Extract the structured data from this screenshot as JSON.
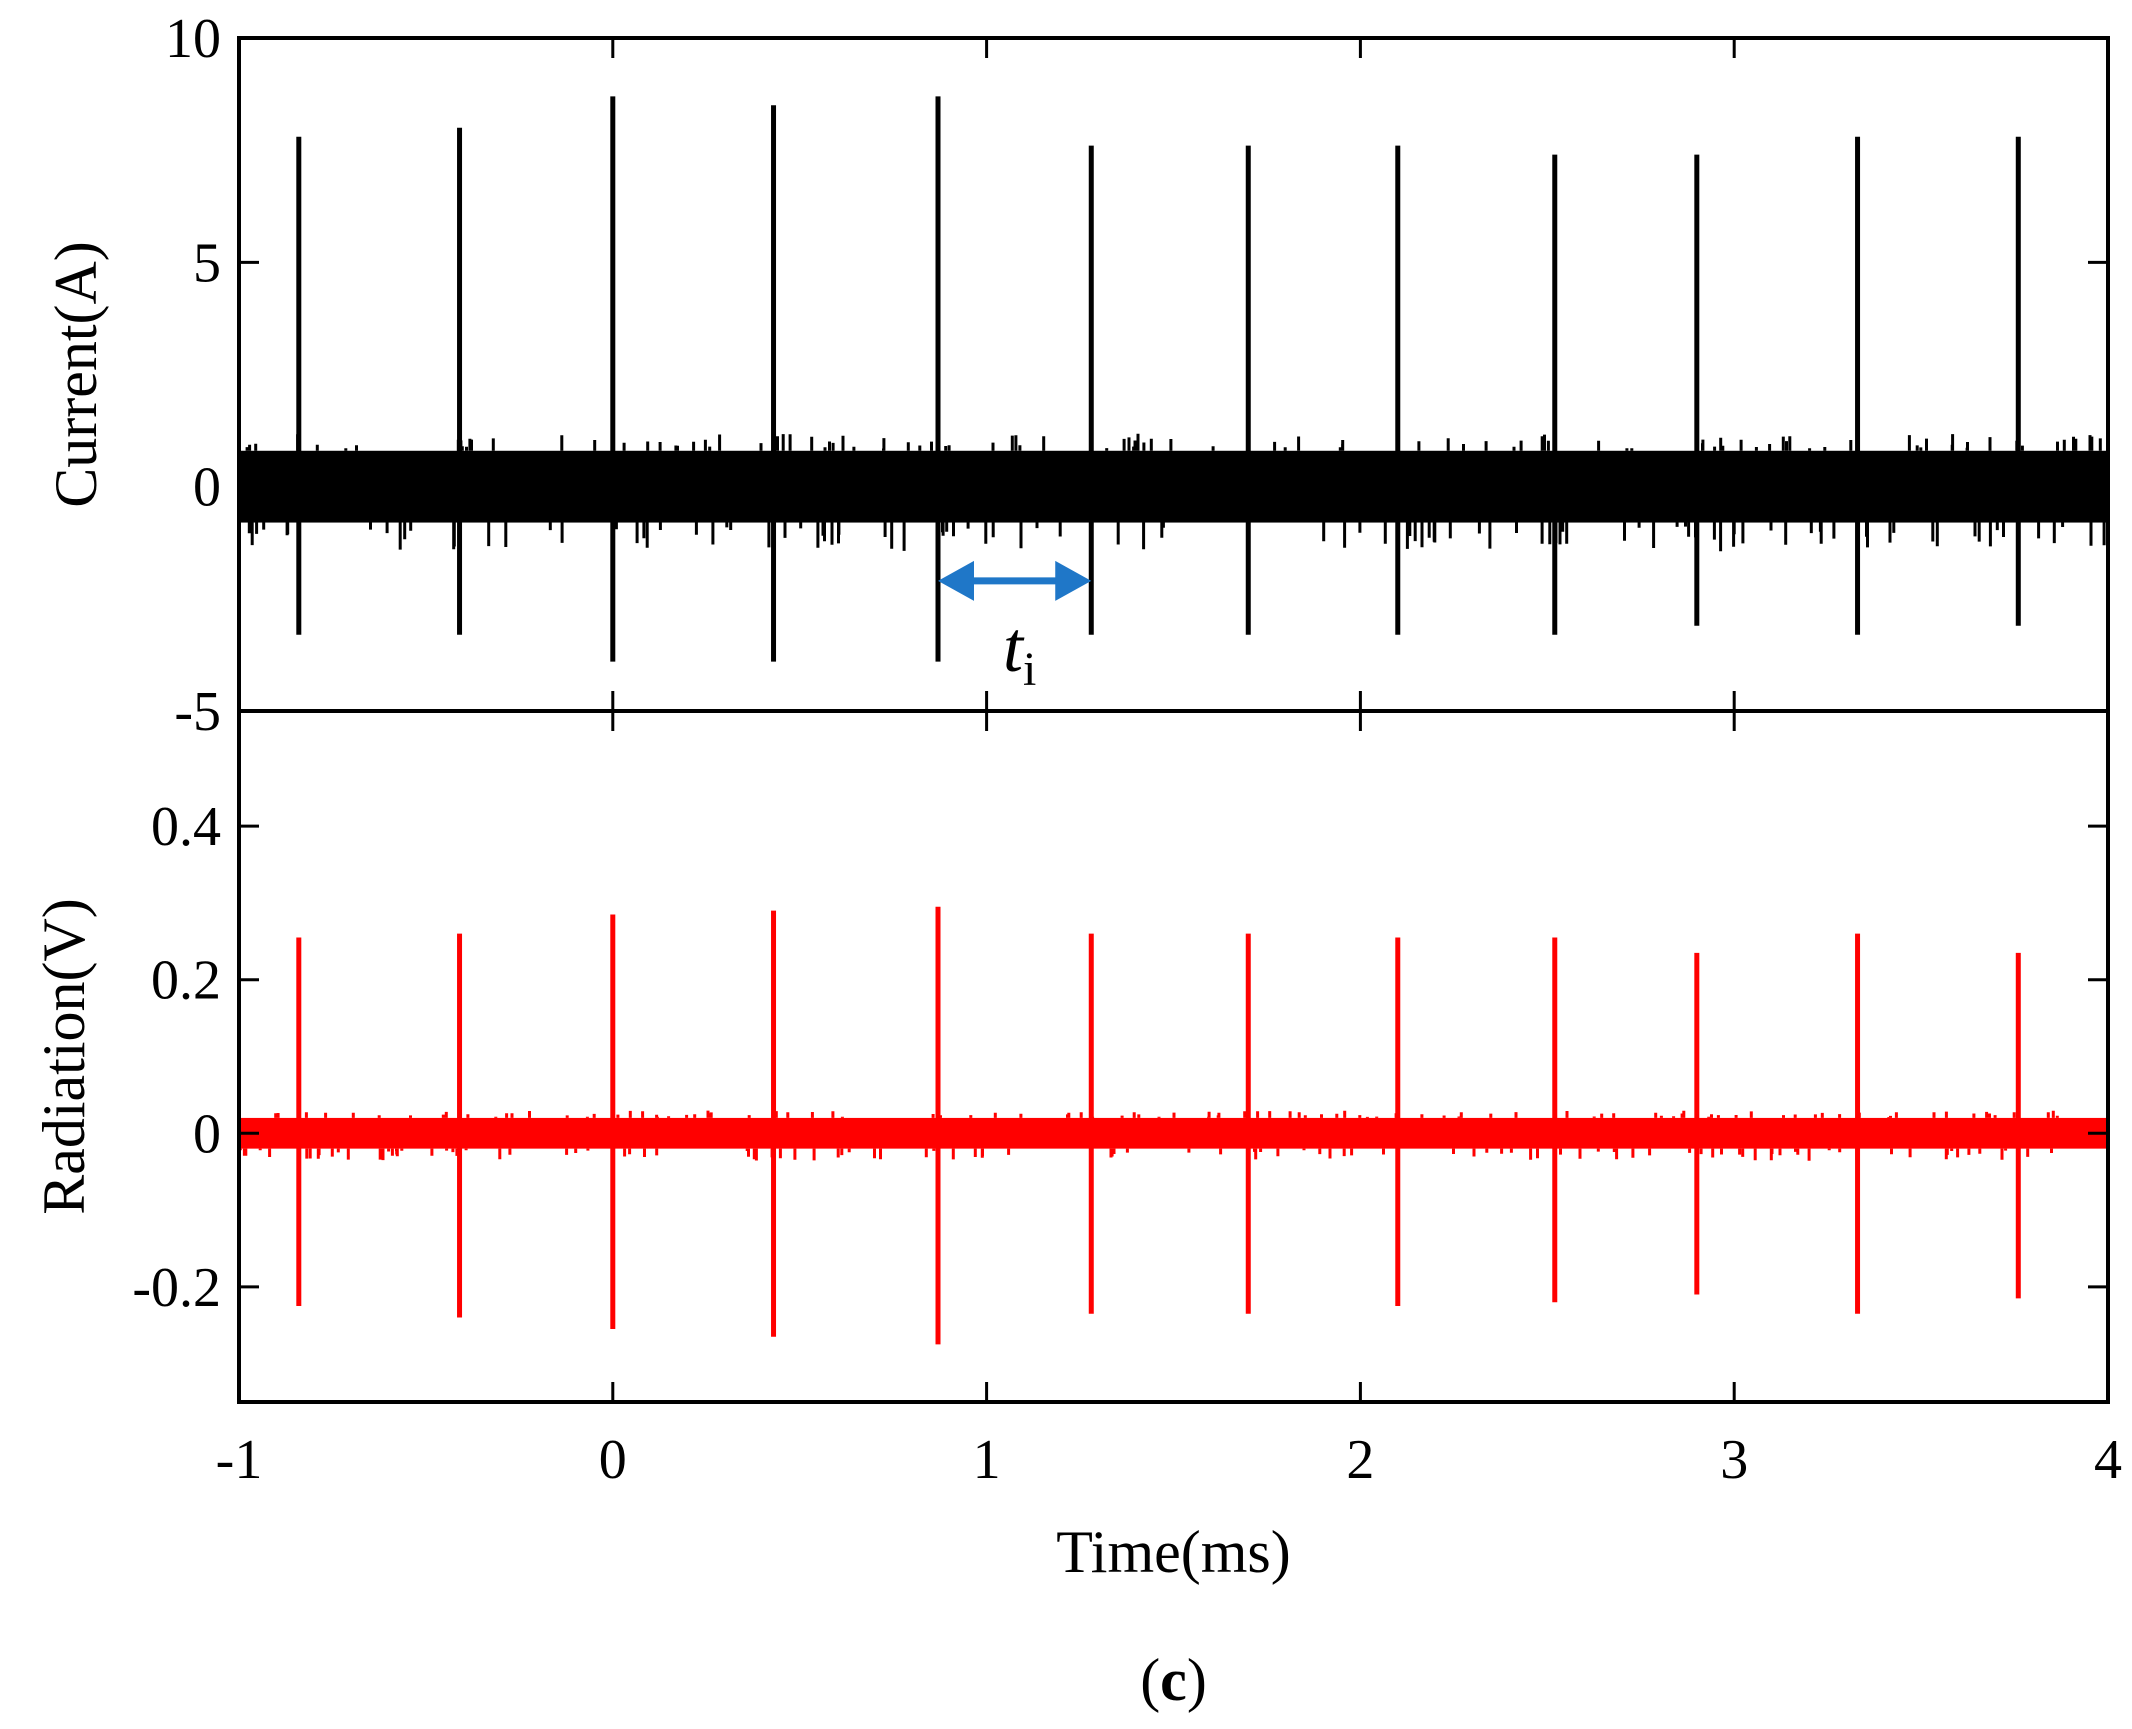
{
  "figure": {
    "panel_label_open": "(",
    "panel_label_letter": "c",
    "panel_label_close": ")"
  },
  "chart_data": [
    {
      "type": "line",
      "ylabel": "Current(A)",
      "xlim": [
        -1,
        4
      ],
      "ylim": [
        -5,
        10
      ],
      "y_axis_inverted_range_note": "",
      "x_ticks": [
        -1,
        0,
        1,
        2,
        3,
        4
      ],
      "y_ticks": [
        10,
        5,
        0,
        -5
      ],
      "y_tick_labels": [
        "10",
        "5",
        "0",
        "-5"
      ],
      "grid": false,
      "series": [
        {
          "color": "#000000",
          "baseline_band": [
            -0.8,
            0.8
          ],
          "pulses": [
            {
              "t": -0.84,
              "max": 7.8,
              "min": -3.3
            },
            {
              "t": -0.41,
              "max": 8.0,
              "min": -3.3
            },
            {
              "t": 0.0,
              "max": 8.7,
              "min": -3.9
            },
            {
              "t": 0.43,
              "max": 8.5,
              "min": -3.9
            },
            {
              "t": 0.87,
              "max": 8.7,
              "min": -3.9
            },
            {
              "t": 1.28,
              "max": 7.6,
              "min": -3.3
            },
            {
              "t": 1.7,
              "max": 7.6,
              "min": -3.3
            },
            {
              "t": 2.1,
              "max": 7.6,
              "min": -3.3
            },
            {
              "t": 2.52,
              "max": 7.4,
              "min": -3.3
            },
            {
              "t": 2.9,
              "max": 7.4,
              "min": -3.1
            },
            {
              "t": 3.33,
              "max": 7.8,
              "min": -3.3
            },
            {
              "t": 3.76,
              "max": 7.8,
              "min": -3.1
            }
          ]
        }
      ],
      "annotations": [
        {
          "type": "double-arrow",
          "x_start": 0.87,
          "x_end": 1.28,
          "y": -2.1,
          "color": "#1f77c8",
          "label_main": "t",
          "label_sub": "i"
        }
      ]
    },
    {
      "type": "line",
      "xlabel": "Time(ms)",
      "ylabel": "Radiation(V)",
      "xlim": [
        -1,
        4
      ],
      "ylim": [
        -0.35,
        0.55
      ],
      "x_ticks": [
        -1,
        0,
        1,
        2,
        3,
        4
      ],
      "x_tick_labels": [
        "-1",
        "0",
        "1",
        "2",
        "3",
        "4"
      ],
      "y_ticks": [
        0.4,
        0.2,
        0,
        -0.2
      ],
      "y_tick_labels": [
        "0.4",
        "0.2",
        "0",
        "-0.2"
      ],
      "grid": false,
      "series": [
        {
          "color": "#ff0000",
          "baseline_band": [
            -0.02,
            0.02
          ],
          "pulses": [
            {
              "t": -0.84,
              "max": 0.255,
              "min": -0.225
            },
            {
              "t": -0.41,
              "max": 0.26,
              "min": -0.24
            },
            {
              "t": 0.0,
              "max": 0.285,
              "min": -0.255
            },
            {
              "t": 0.43,
              "max": 0.29,
              "min": -0.265
            },
            {
              "t": 0.87,
              "max": 0.295,
              "min": -0.275
            },
            {
              "t": 1.28,
              "max": 0.26,
              "min": -0.235
            },
            {
              "t": 1.7,
              "max": 0.26,
              "min": -0.235
            },
            {
              "t": 2.1,
              "max": 0.255,
              "min": -0.225
            },
            {
              "t": 2.52,
              "max": 0.255,
              "min": -0.22
            },
            {
              "t": 2.9,
              "max": 0.235,
              "min": -0.21
            },
            {
              "t": 3.33,
              "max": 0.26,
              "min": -0.235
            },
            {
              "t": 3.76,
              "max": 0.235,
              "min": -0.215
            }
          ]
        }
      ]
    }
  ]
}
